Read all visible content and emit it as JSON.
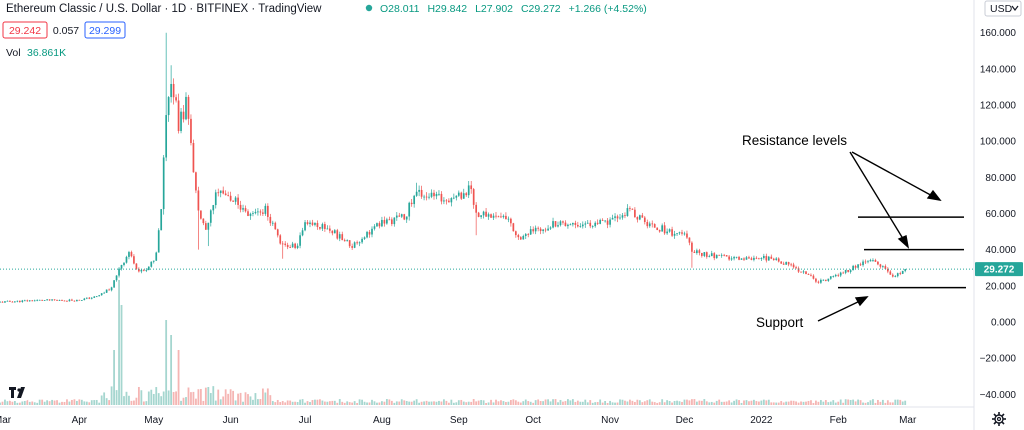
{
  "header": {
    "title": "Ethereum Classic / U.S. Dollar · 1D · BITFINEX · TradingView",
    "open": "O28.011",
    "high": "H29.842",
    "low": "L27.902",
    "close": "C29.272",
    "change": "+1.266 (+4.52%)",
    "bid": "29.242",
    "spread": "0.057",
    "ask": "29.299",
    "vol_label": "Vol",
    "vol_value": "36.861K",
    "currency": "USD"
  },
  "colors": {
    "up": "#26a69a",
    "down": "#ef5350",
    "vol_up": "#a5d6cf",
    "vol_down": "#f5b5b3",
    "price_line": "#26a69a",
    "bid_box": "#f23645",
    "ask_box": "#2962ff"
  },
  "icons": {
    "logo": "tradingview-logo-icon",
    "settings": "gear-icon",
    "dropdown": "chevron-down-icon"
  },
  "chart_data": {
    "type": "candlestick",
    "title": "Ethereum Classic / U.S. Dollar · 1D · BITFINEX · TradingView",
    "y_ticks": [
      "160.000",
      "140.000",
      "120.000",
      "100.000",
      "80.000",
      "60.000",
      "40.000",
      "20.000",
      "0.000",
      "−20.000",
      "−40.000"
    ],
    "y_tick_values": [
      160,
      140,
      120,
      100,
      80,
      60,
      40,
      20,
      0,
      -20,
      -40
    ],
    "ylim": [
      -45,
      168
    ],
    "x_ticks": [
      "Mar",
      "Apr",
      "May",
      "Jun",
      "Jul",
      "Aug",
      "Sep",
      "Oct",
      "Nov",
      "Dec",
      "2022",
      "Feb",
      "Mar"
    ],
    "x_tick_dates": [
      "2021-03-01",
      "2021-04-01",
      "2021-05-01",
      "2021-06-01",
      "2021-07-01",
      "2021-08-01",
      "2021-09-01",
      "2021-10-01",
      "2021-11-01",
      "2021-12-01",
      "2022-01-01",
      "2022-02-01",
      "2022-03-01"
    ],
    "last_price": "29.272",
    "last_price_value": 29.272,
    "price_path": [
      [
        "2021-02-28",
        11
      ],
      [
        "2021-03-15",
        12
      ],
      [
        "2021-03-31",
        12
      ],
      [
        "2021-04-08",
        14
      ],
      [
        "2021-04-14",
        19
      ],
      [
        "2021-04-17",
        30
      ],
      [
        "2021-04-21",
        38
      ],
      [
        "2021-04-25",
        28
      ],
      [
        "2021-04-29",
        30
      ],
      [
        "2021-05-02",
        38
      ],
      [
        "2021-05-04",
        65
      ],
      [
        "2021-05-06",
        118
      ],
      [
        "2021-05-08",
        135
      ],
      [
        "2021-05-11",
        110
      ],
      [
        "2021-05-14",
        120
      ],
      [
        "2021-05-16",
        98
      ],
      [
        "2021-05-19",
        60
      ],
      [
        "2021-05-22",
        50
      ],
      [
        "2021-05-26",
        70
      ],
      [
        "2021-05-31",
        70
      ],
      [
        "2021-06-08",
        60
      ],
      [
        "2021-06-15",
        62
      ],
      [
        "2021-06-22",
        42
      ],
      [
        "2021-06-28",
        42
      ],
      [
        "2021-07-01",
        56
      ],
      [
        "2021-07-10",
        52
      ],
      [
        "2021-07-20",
        42
      ],
      [
        "2021-07-25",
        48
      ],
      [
        "2021-08-01",
        55
      ],
      [
        "2021-08-10",
        58
      ],
      [
        "2021-08-15",
        72
      ],
      [
        "2021-08-25",
        68
      ],
      [
        "2021-09-01",
        70
      ],
      [
        "2021-09-06",
        74
      ],
      [
        "2021-09-08",
        60
      ],
      [
        "2021-09-20",
        58
      ],
      [
        "2021-09-25",
        47
      ],
      [
        "2021-10-01",
        50
      ],
      [
        "2021-10-10",
        55
      ],
      [
        "2021-10-25",
        54
      ],
      [
        "2021-11-01",
        55
      ],
      [
        "2021-11-09",
        62
      ],
      [
        "2021-11-15",
        55
      ],
      [
        "2021-11-25",
        50
      ],
      [
        "2021-12-01",
        48
      ],
      [
        "2021-12-04",
        40
      ],
      [
        "2021-12-10",
        37
      ],
      [
        "2021-12-20",
        35
      ],
      [
        "2022-01-01",
        36
      ],
      [
        "2022-01-10",
        33
      ],
      [
        "2022-01-20",
        26
      ],
      [
        "2022-01-24",
        22
      ],
      [
        "2022-02-01",
        26
      ],
      [
        "2022-02-10",
        32
      ],
      [
        "2022-02-15",
        34
      ],
      [
        "2022-02-24",
        25
      ],
      [
        "2022-02-28",
        29
      ]
    ],
    "candle_lows": [
      [
        "2021-05-19",
        40
      ],
      [
        "2021-05-23",
        42
      ],
      [
        "2021-06-22",
        35
      ],
      [
        "2021-09-08",
        48
      ],
      [
        "2021-12-04",
        30
      ]
    ],
    "candle_highs": [
      [
        "2021-05-06",
        160
      ],
      [
        "2021-05-08",
        142
      ],
      [
        "2021-08-15",
        77
      ],
      [
        "2021-09-06",
        78
      ]
    ],
    "volume_spikes": [
      [
        "2021-04-17",
        125
      ],
      [
        "2021-04-18",
        100
      ],
      [
        "2021-05-06",
        85
      ],
      [
        "2021-05-08",
        70
      ],
      [
        "2021-04-15",
        55
      ],
      [
        "2021-05-11",
        55
      ]
    ],
    "annotations": {
      "resistance_label": "Resistance levels",
      "support_label": "Support"
    },
    "resistance_levels": [
      58,
      40
    ],
    "support_level": 19
  }
}
